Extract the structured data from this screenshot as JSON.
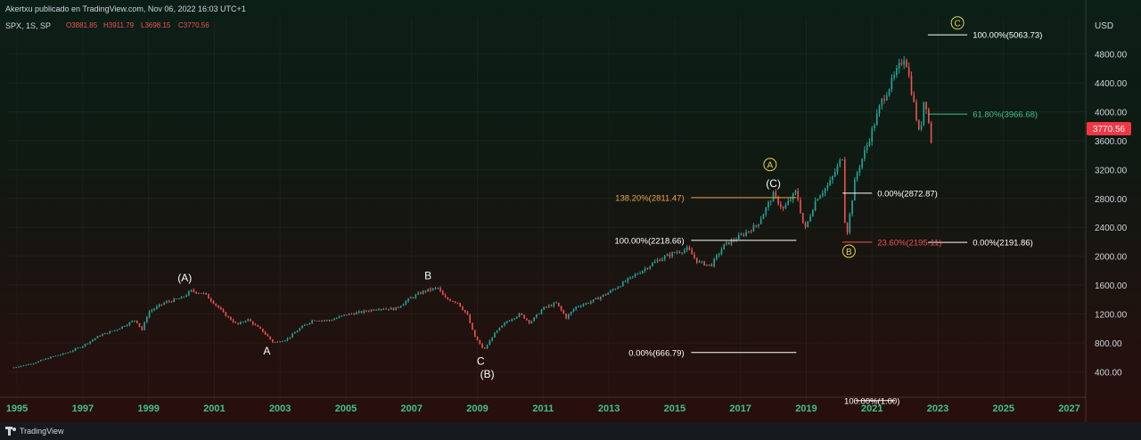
{
  "header": {
    "published": "Akertxu publicado en TradingView.com, Nov 06, 2022 16:03 UTC+1",
    "symbol": "SPX, 1S, SP",
    "ohlc": [
      {
        "k": "O",
        "v": "3881.85"
      },
      {
        "k": "H",
        "v": "3911.79"
      },
      {
        "k": "L",
        "v": "3698.15"
      },
      {
        "k": "C",
        "v": "3770.56"
      }
    ]
  },
  "footer": {
    "brand": "TradingView"
  },
  "colors": {
    "up": "#26a69a",
    "down": "#ef5350",
    "fib_orange": "#f0a040",
    "fib_red": "#ef5350",
    "fib_green": "#43c08a",
    "fib_white": "#ffffff",
    "wave_circle": "#e8d44d",
    "price_badge": "#f23645"
  },
  "chart_data": {
    "type": "line",
    "title": "",
    "y_unit": "USD",
    "x_ticks": [
      "1995",
      "1997",
      "1999",
      "2001",
      "2003",
      "2005",
      "2007",
      "2009",
      "2011",
      "2013",
      "2015",
      "2017",
      "2019",
      "2021",
      "2023",
      "2025",
      "2027"
    ],
    "y_ticks": [
      "400.00",
      "800.00",
      "1200.00",
      "1600.00",
      "2000.00",
      "2400.00",
      "2800.00",
      "3200.00",
      "3600.00",
      "4000.00",
      "4400.00",
      "4800.00"
    ],
    "ylim": [
      -100,
      5300
    ],
    "xlim": [
      1994.7,
      2027.5
    ],
    "last_price": "3770.56",
    "series": [
      {
        "values": [
          [
            1994.9,
            460
          ],
          [
            1995.5,
            520
          ],
          [
            1996.0,
            600
          ],
          [
            1996.5,
            660
          ],
          [
            1997.0,
            760
          ],
          [
            1997.5,
            900
          ],
          [
            1998.0,
            980
          ],
          [
            1998.6,
            1120
          ],
          [
            1998.8,
            980
          ],
          [
            1999.0,
            1230
          ],
          [
            1999.5,
            1360
          ],
          [
            2000.0,
            1420
          ],
          [
            2000.3,
            1520
          ],
          [
            2000.7,
            1480
          ],
          [
            2001.0,
            1350
          ],
          [
            2001.3,
            1200
          ],
          [
            2001.7,
            1050
          ],
          [
            2002.0,
            1130
          ],
          [
            2002.5,
            950
          ],
          [
            2002.8,
            800
          ],
          [
            2003.2,
            850
          ],
          [
            2003.6,
            1000
          ],
          [
            2004.0,
            1120
          ],
          [
            2004.5,
            1110
          ],
          [
            2005.0,
            1190
          ],
          [
            2005.5,
            1230
          ],
          [
            2006.0,
            1280
          ],
          [
            2006.5,
            1270
          ],
          [
            2007.0,
            1430
          ],
          [
            2007.4,
            1520
          ],
          [
            2007.8,
            1560
          ],
          [
            2008.0,
            1420
          ],
          [
            2008.4,
            1360
          ],
          [
            2008.7,
            1180
          ],
          [
            2008.9,
            900
          ],
          [
            2009.2,
            700
          ],
          [
            2009.5,
            920
          ],
          [
            2009.9,
            1100
          ],
          [
            2010.3,
            1200
          ],
          [
            2010.6,
            1080
          ],
          [
            2011.0,
            1280
          ],
          [
            2011.4,
            1350
          ],
          [
            2011.7,
            1150
          ],
          [
            2012.0,
            1300
          ],
          [
            2012.5,
            1380
          ],
          [
            2013.0,
            1500
          ],
          [
            2013.5,
            1650
          ],
          [
            2014.0,
            1800
          ],
          [
            2014.5,
            1950
          ],
          [
            2015.0,
            2050
          ],
          [
            2015.4,
            2100
          ],
          [
            2015.7,
            1920
          ],
          [
            2016.1,
            1870
          ],
          [
            2016.5,
            2150
          ],
          [
            2017.0,
            2280
          ],
          [
            2017.5,
            2430
          ],
          [
            2018.0,
            2850
          ],
          [
            2018.3,
            2650
          ],
          [
            2018.7,
            2900
          ],
          [
            2018.95,
            2350
          ],
          [
            2019.3,
            2800
          ],
          [
            2019.7,
            3000
          ],
          [
            2020.1,
            3380
          ],
          [
            2020.2,
            2200
          ],
          [
            2020.5,
            3100
          ],
          [
            2020.9,
            3600
          ],
          [
            2021.3,
            4150
          ],
          [
            2021.7,
            4500
          ],
          [
            2022.0,
            4790
          ],
          [
            2022.2,
            4300
          ],
          [
            2022.45,
            3650
          ],
          [
            2022.6,
            4250
          ],
          [
            2022.8,
            3600
          ],
          [
            2022.87,
            3770
          ]
        ]
      }
    ],
    "fib_levels": [
      {
        "label": "100.00%(5063.73)",
        "y": 5063.73,
        "x0": 2022.7,
        "x1": 2023.9,
        "color": "fib_white",
        "label_x": 2023.9,
        "align": "start"
      },
      {
        "label": "61.80%(3966.68)",
        "y": 3966.68,
        "x0": 2022.7,
        "x1": 2023.9,
        "color": "fib_green",
        "label_x": 2023.9,
        "align": "start"
      },
      {
        "label": "0.00%(2191.86)",
        "y": 2191.86,
        "x0": 2022.7,
        "x1": 2023.9,
        "color": "fib_white",
        "label_x": 2023.9,
        "align": "start"
      },
      {
        "label": "0.00%(2872.87)",
        "y": 2872.87,
        "x0": 2020.1,
        "x1": 2021.0,
        "color": "fib_white",
        "label_x": 2021.0,
        "align": "start"
      },
      {
        "label": "23.60%(2195.11)",
        "y": 2195.11,
        "x0": 2020.1,
        "x1": 2021.0,
        "color": "fib_red",
        "label_x": 2021.0,
        "align": "start"
      },
      {
        "label": "138.20%(2811.47)",
        "y": 2811.47,
        "x0": 2015.5,
        "x1": 2018.7,
        "color": "fib_orange",
        "label_x": 2015.4,
        "align": "end"
      },
      {
        "label": "100.00%(2218.66)",
        "y": 2218.66,
        "x0": 2015.5,
        "x1": 2018.7,
        "color": "fib_white",
        "label_x": 2015.4,
        "align": "end"
      },
      {
        "label": "0.00%(666.79)",
        "y": 666.79,
        "x0": 2015.5,
        "x1": 2018.7,
        "color": "fib_white",
        "label_x": 2015.4,
        "align": "end"
      },
      {
        "label": "100.00%(1.00)",
        "y": 1.0,
        "x0": 2020.5,
        "x1": 2021.7,
        "color": "fib_white",
        "label_x": 2021.0,
        "align": "middle"
      }
    ],
    "wave_labels": [
      {
        "text": "(A)",
        "x": 2000.1,
        "y": 1650,
        "circled": false
      },
      {
        "text": "A",
        "x": 2002.6,
        "y": 640,
        "circled": false
      },
      {
        "text": "B",
        "x": 2007.5,
        "y": 1680,
        "circled": false
      },
      {
        "text": "C",
        "x": 2009.1,
        "y": 500,
        "circled": false
      },
      {
        "text": "(B)",
        "x": 2009.3,
        "y": 320,
        "circled": false
      },
      {
        "text": "(C)",
        "x": 2018.0,
        "y": 2960,
        "circled": false
      },
      {
        "text": "A",
        "x": 2017.9,
        "y": 3220,
        "circled": true
      },
      {
        "text": "B",
        "x": 2020.3,
        "y": 2020,
        "circled": true
      },
      {
        "text": "C",
        "x": 2023.6,
        "y": 5180,
        "circled": true
      }
    ]
  }
}
